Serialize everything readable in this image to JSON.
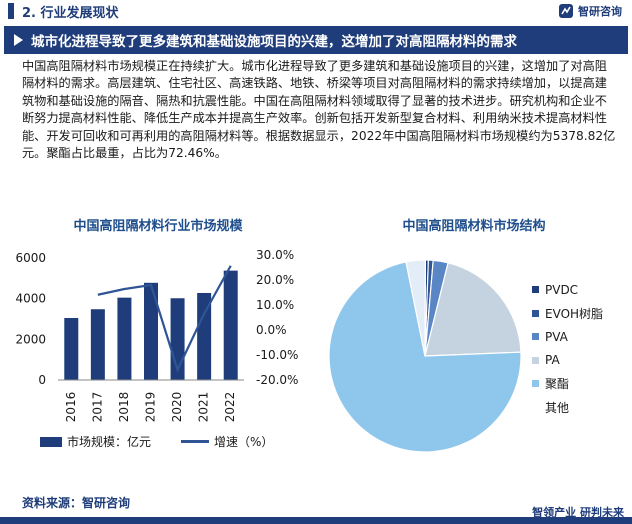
{
  "header": {
    "section_title": "2. 行业发展现状",
    "brand_name": "智研咨询"
  },
  "banner": {
    "text": "城市化进程导致了更多建筑和基础设施项目的兴建，这增加了对高阻隔材料的需求"
  },
  "body_text": "中国高阻隔材料市场规模正在持续扩大。城市化进程导致了更多建筑和基础设施项目的兴建，这增加了对高阻隔材料的需求。高层建筑、住宅社区、高速铁路、地铁、桥梁等项目对高阻隔材料的需求持续增加，以提高建筑物和基础设施的隔音、隔热和抗震性能。中国在高阻隔材料领域取得了显著的技术进步。研究机构和企业不断努力提高材料性能、降低生产成本并提高生产效率。创新包括开发新型复合材料、利用纳米技术提高材料性能、开发可回收和可再利用的高阻隔材料等。根据数据显示，2022年中国高阻隔材料市场规模约为5378.82亿元。聚酯占比最重，占比为72.46%。",
  "chart_data": [
    {
      "type": "bar",
      "title": "中国高阻隔材料行业市场规模",
      "categories": [
        "2016",
        "2017",
        "2018",
        "2019",
        "2020",
        "2021",
        "2022"
      ],
      "series": [
        {
          "name": "市场规模：亿元",
          "type": "bar",
          "axis": "left",
          "values": [
            3050,
            3480,
            4050,
            4780,
            4020,
            4280,
            5378.82
          ]
        },
        {
          "name": "增速（%）",
          "type": "line",
          "axis": "right",
          "values": [
            null,
            14.1,
            16.4,
            18.0,
            -15.9,
            6.5,
            25.7
          ]
        }
      ],
      "y_left": {
        "ticks": [
          "0",
          "2000",
          "4000",
          "6000"
        ],
        "range": [
          0,
          6000
        ]
      },
      "y_right": {
        "ticks": [
          "30.0%",
          "20.0%",
          "10.0%",
          "0.0%",
          "-10.0%",
          "-20.0%"
        ],
        "range": [
          -20,
          30
        ]
      },
      "legend": "bottom",
      "colors": {
        "bar": "#1f3d7a",
        "line": "#2f5597"
      }
    },
    {
      "type": "pie",
      "title": "中国高阻隔材料市场结构",
      "slices": [
        {
          "label": "PVDC",
          "value": 0.5,
          "color": "#1f3d7a"
        },
        {
          "label": "EVOH树脂",
          "value": 0.8,
          "color": "#2f5597"
        },
        {
          "label": "PVA",
          "value": 2.5,
          "color": "#5b86c6"
        },
        {
          "label": "PA",
          "value": 20.5,
          "color": "#c5d3e0"
        },
        {
          "label": "聚酯",
          "value": 72.46,
          "color": "#8fc6ec"
        },
        {
          "label": "其他",
          "value": 3.24,
          "color": "#e3edf7"
        }
      ],
      "legend": "right"
    }
  ],
  "footer": {
    "source": "资料来源：智研咨询",
    "slogan": "智领产业 研判未来"
  }
}
